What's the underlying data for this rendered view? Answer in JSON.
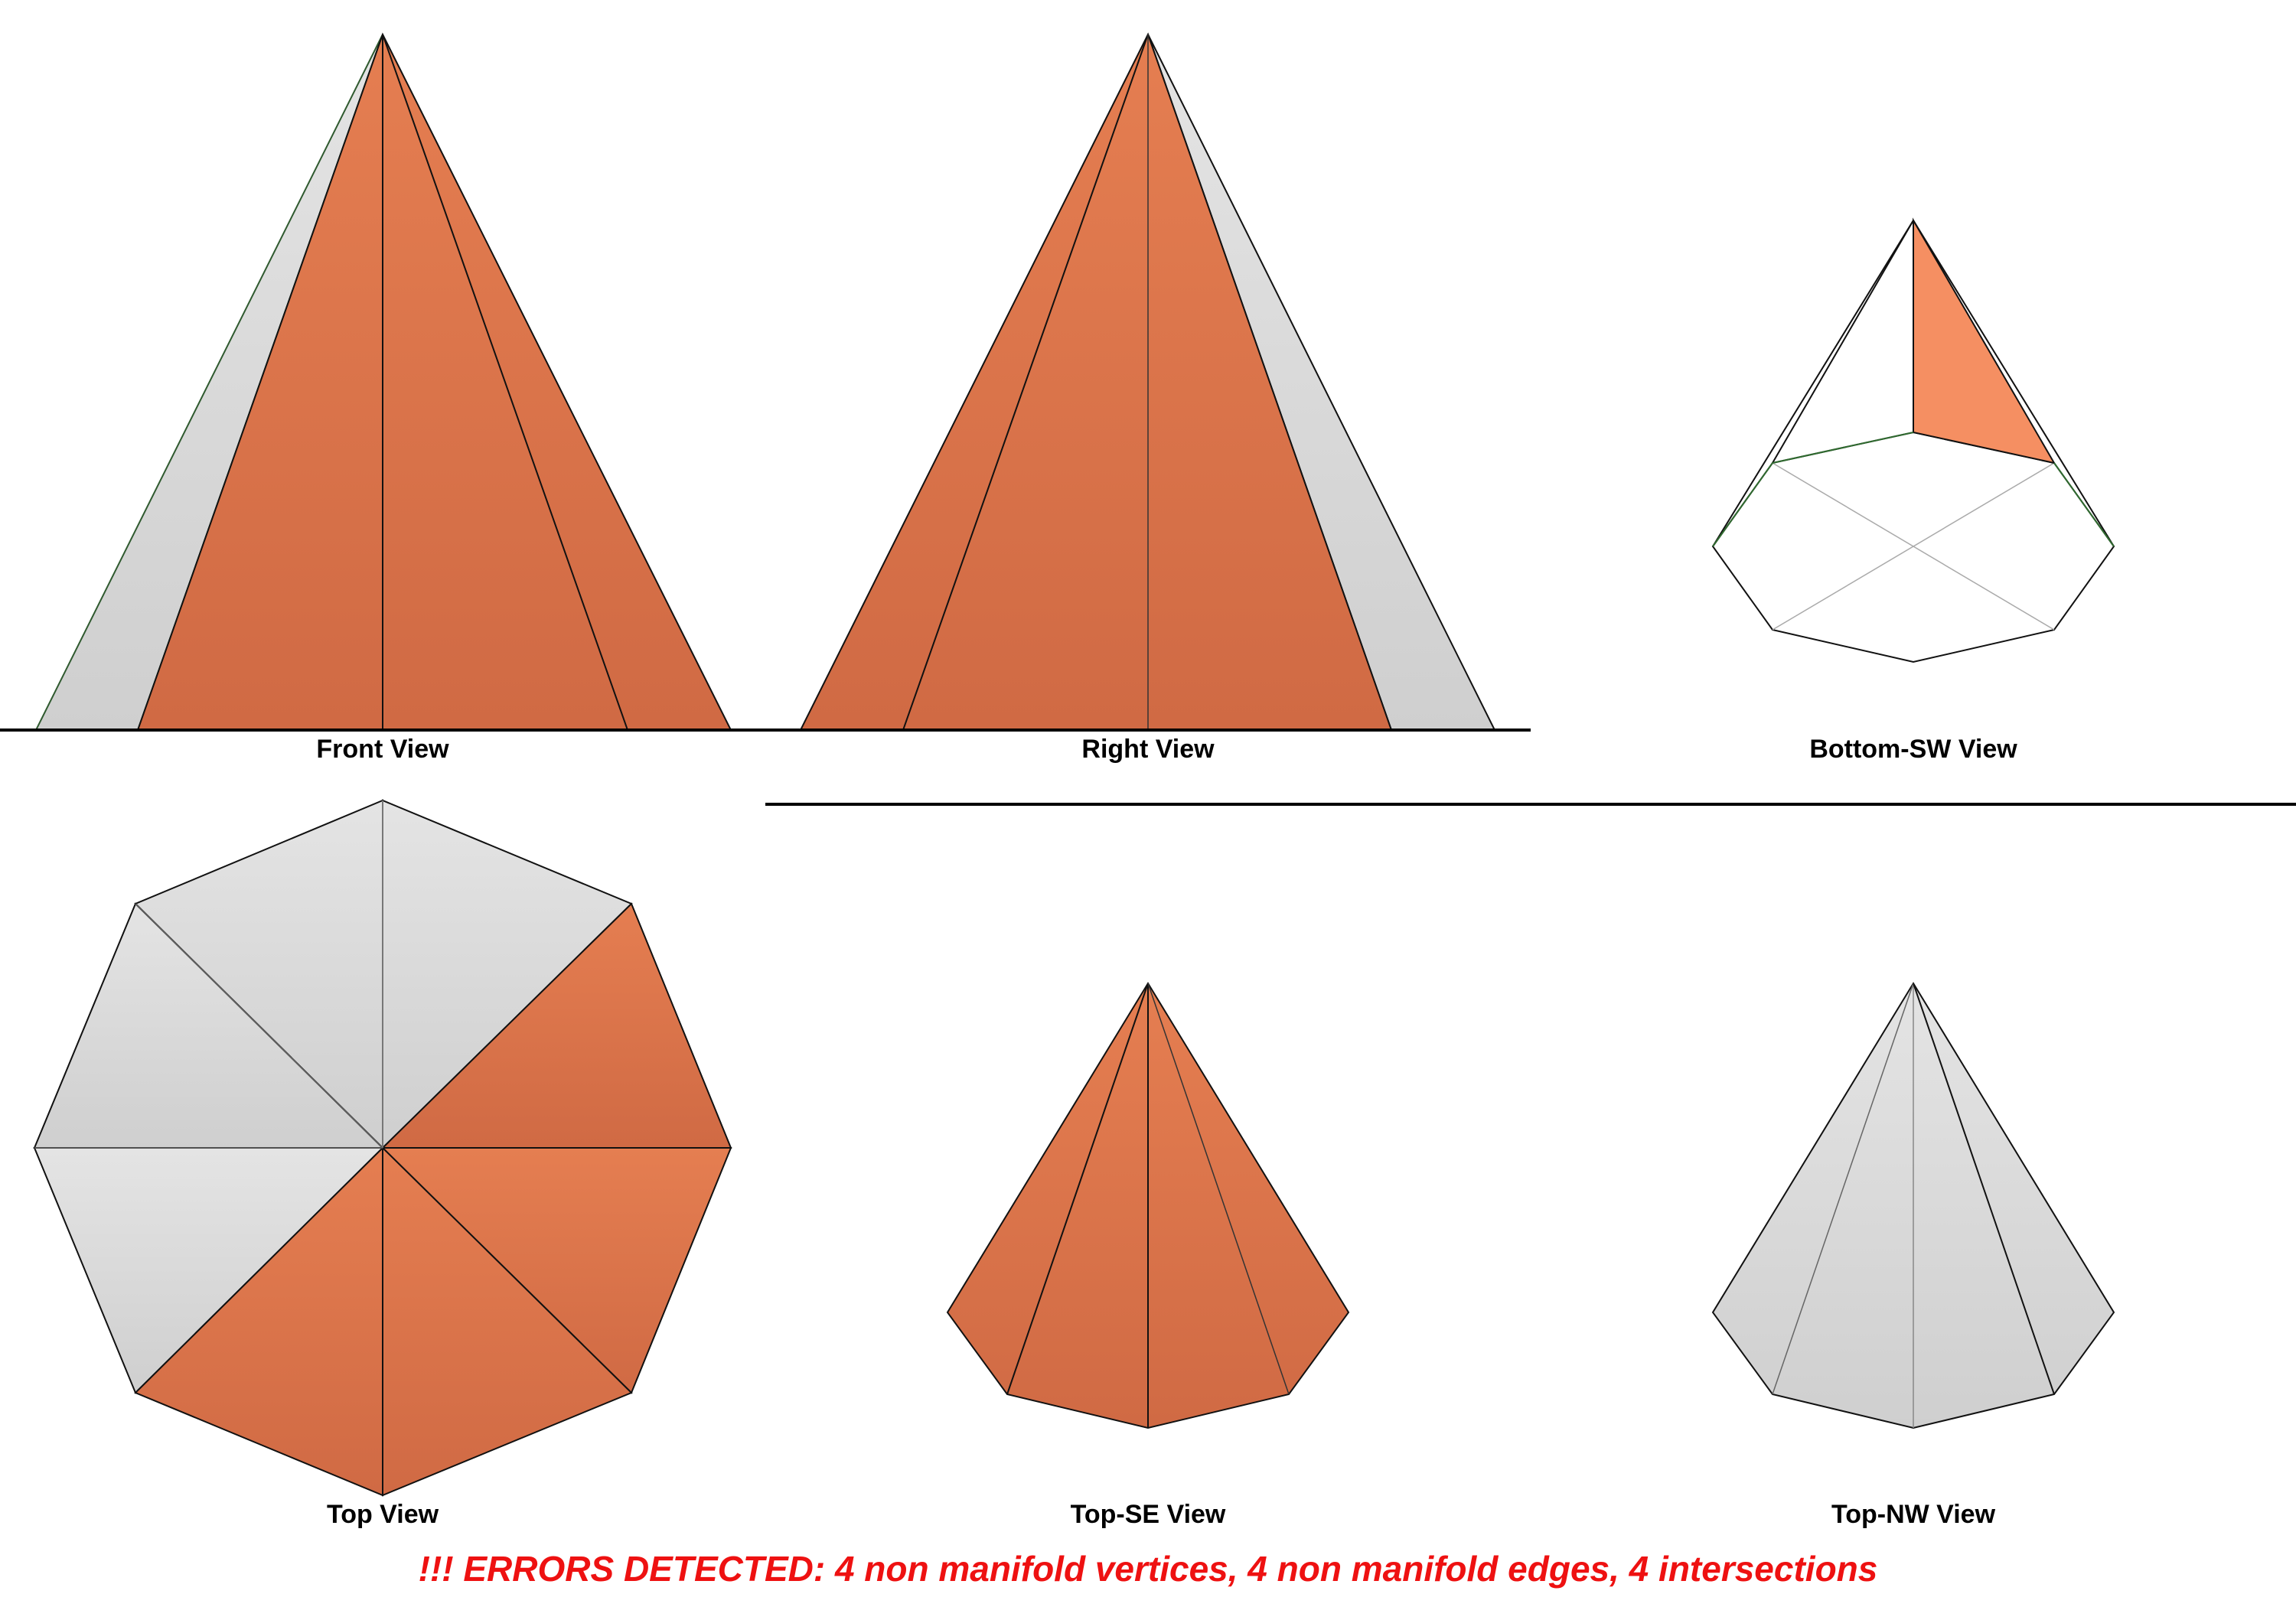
{
  "views": {
    "front": "Front View",
    "right": "Right View",
    "bottom_sw": "Bottom-SW View",
    "top": "Top View",
    "top_se": "Top-SE View",
    "top_nw": "Top-NW View"
  },
  "error_message": "!!! ERRORS DETECTED: 4 non manifold vertices, 4 non manifold edges, 4 intersections",
  "colors": {
    "orange_face": "#dc7045",
    "orange_face_light": "#f58a5c",
    "grey_face": "#dadada",
    "error_red": "#ee1111"
  }
}
